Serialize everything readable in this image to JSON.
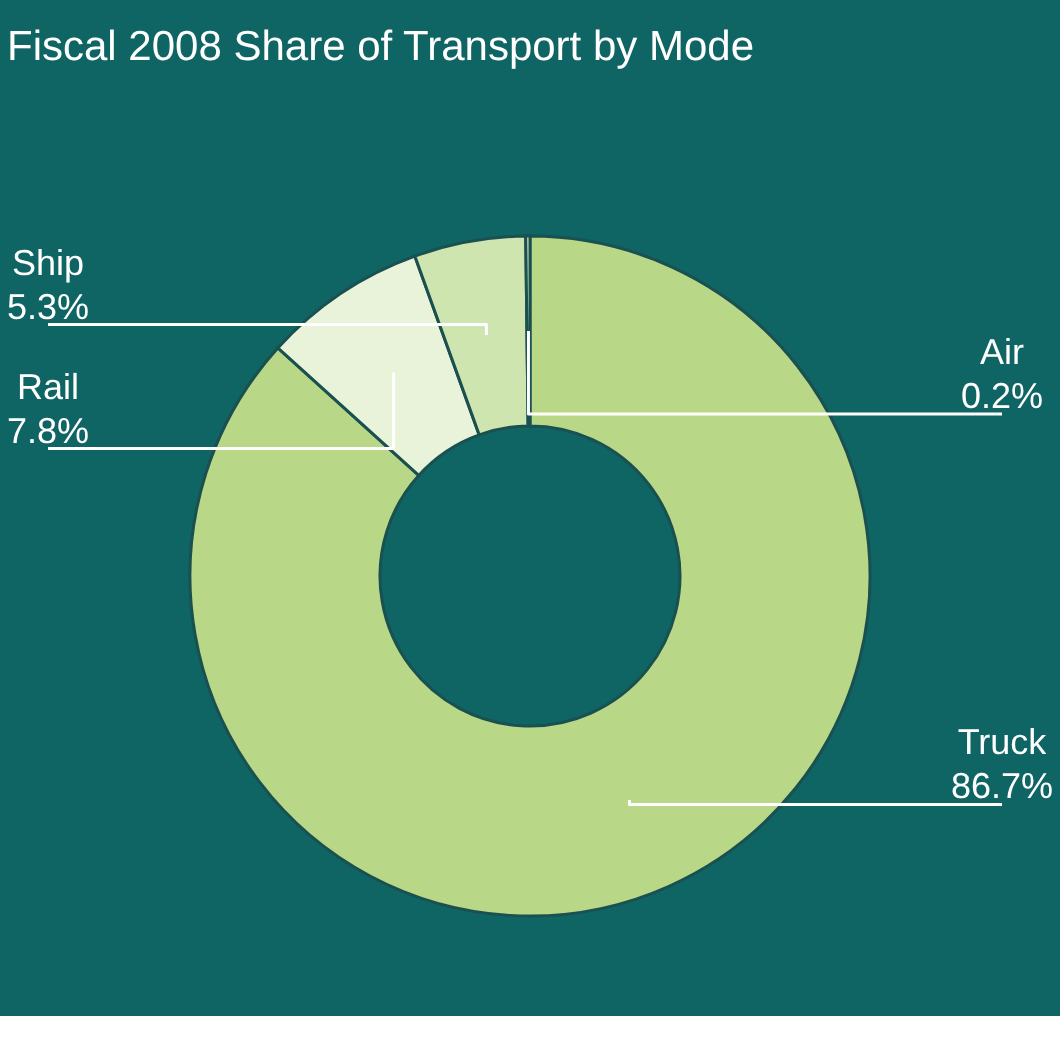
{
  "chart_data": {
    "type": "donut",
    "title": "Fiscal 2008 Share of  Transport by Mode",
    "categories": [
      "Truck",
      "Rail",
      "Ship",
      "Air"
    ],
    "values": [
      86.7,
      7.8,
      5.3,
      0.2
    ],
    "value_labels": [
      "86.7%",
      "7.8%",
      "5.3%",
      "0.2%"
    ],
    "colors": [
      "#b8d887",
      "#e9f3d9",
      "#cfe5b0",
      "#dcecc6"
    ]
  }
}
